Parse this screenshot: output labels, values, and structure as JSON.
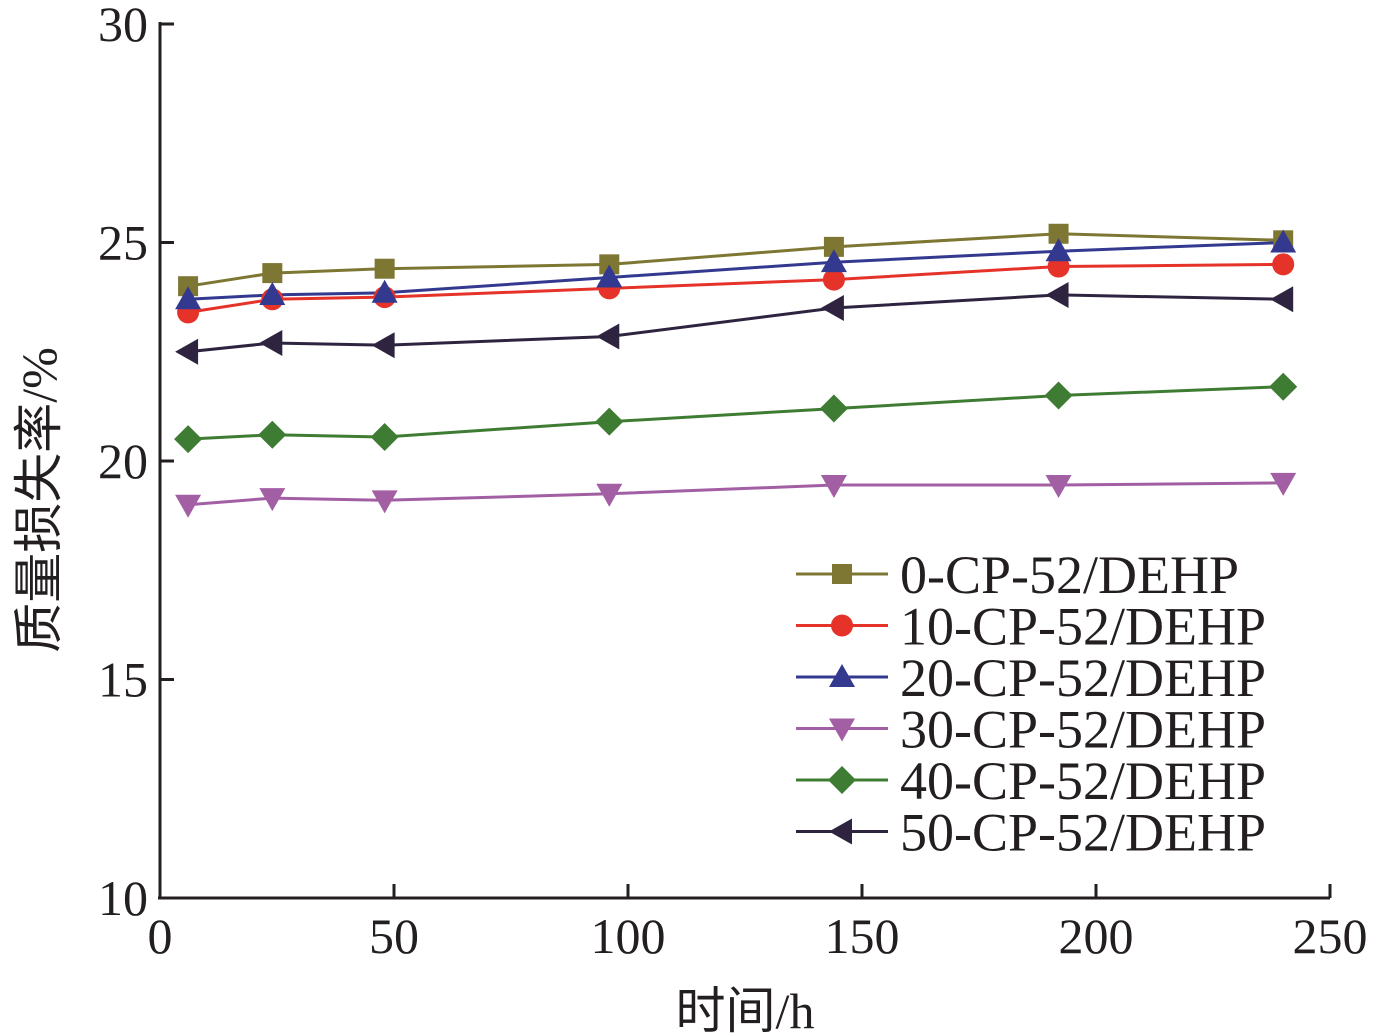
{
  "chart_data": {
    "type": "line",
    "xlabel": "时间/h",
    "ylabel": "质量损失率/%",
    "xlim": [
      0,
      250
    ],
    "ylim": [
      10,
      30
    ],
    "xticks": [
      0,
      50,
      100,
      150,
      200,
      250
    ],
    "xtick_labels": [
      "0",
      "50",
      "100",
      "150",
      "200",
      "250"
    ],
    "yticks": [
      10,
      15,
      20,
      25,
      30
    ],
    "ytick_labels": [
      "10",
      "15",
      "20",
      "25",
      "30"
    ],
    "grid": false,
    "legend_position": "bottom-right",
    "x": [
      6,
      24,
      48,
      96,
      144,
      192,
      240
    ],
    "series": [
      {
        "name": "0-CP-52/DEHP",
        "color": "#7d7733",
        "marker": "square",
        "values": [
          24.0,
          24.3,
          24.4,
          24.5,
          24.9,
          25.2,
          25.05
        ]
      },
      {
        "name": "10-CP-52/DEHP",
        "color": "#e5332a",
        "marker": "circle",
        "values": [
          23.4,
          23.7,
          23.75,
          23.95,
          24.15,
          24.45,
          24.5
        ]
      },
      {
        "name": "20-CP-52/DEHP",
        "color": "#33398f",
        "marker": "triangle-up",
        "values": [
          23.7,
          23.8,
          23.85,
          24.2,
          24.55,
          24.8,
          25.0
        ]
      },
      {
        "name": "30-CP-52/DEHP",
        "color": "#a25fa4",
        "marker": "triangle-down",
        "values": [
          19.0,
          19.15,
          19.1,
          19.25,
          19.45,
          19.45,
          19.5
        ]
      },
      {
        "name": "40-CP-52/DEHP",
        "color": "#3f7c33",
        "marker": "diamond",
        "values": [
          20.5,
          20.6,
          20.55,
          20.9,
          21.2,
          21.5,
          21.7
        ]
      },
      {
        "name": "50-CP-52/DEHP",
        "color": "#2f2440",
        "marker": "triangle-left",
        "values": [
          22.5,
          22.7,
          22.65,
          22.85,
          23.5,
          23.8,
          23.7
        ]
      }
    ]
  }
}
